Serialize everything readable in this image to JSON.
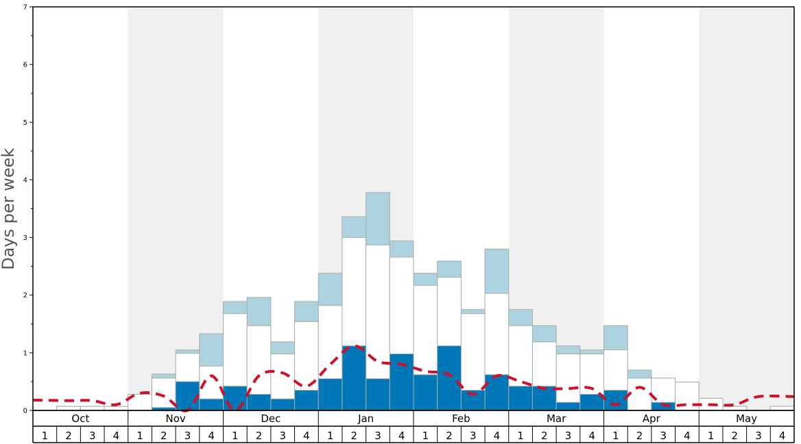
{
  "chart_data": {
    "type": "bar",
    "title": "",
    "ylabel": "Days per week",
    "xlabel": "",
    "ylim": [
      0,
      7
    ],
    "y_ticks": [
      "0",
      "1",
      "2",
      "3",
      "4",
      "5",
      "6",
      "7"
    ],
    "months": [
      "Oct",
      "Nov",
      "Dec",
      "Jan",
      "Feb",
      "Mar",
      "Apr",
      "May"
    ],
    "week_labels": [
      "1",
      "2",
      "3",
      "4"
    ],
    "colors": {
      "dark_bar": "#0077b6",
      "light_bar": "#add3df",
      "white_bar": "#ffffff",
      "bar_outline": "#aaaaaa",
      "band_shade": "#f0f0f0",
      "dashed_line": "#d0102a"
    },
    "series": [
      {
        "values": [
          0,
          0,
          0,
          0,
          0,
          0.05,
          0.5,
          0.2,
          0.42,
          0.28,
          0.2,
          0.35,
          0.55,
          1.12,
          0.55,
          0.98,
          0.62,
          1.12,
          0.35,
          0.62,
          0.42,
          0.42,
          0.14,
          0.28,
          0.35,
          0,
          0.14,
          0,
          0,
          0,
          0,
          0
        ]
      },
      {
        "values": [
          0,
          0.07,
          0.07,
          0.07,
          0.28,
          0.56,
          0.99,
          0.77,
          1.68,
          1.47,
          0.98,
          1.54,
          1.82,
          3.0,
          2.87,
          2.66,
          2.17,
          2.31,
          1.68,
          2.03,
          1.47,
          1.19,
          0.98,
          0.98,
          1.05,
          0.56,
          0.56,
          0.49,
          0.21,
          0.07,
          0,
          0.07
        ]
      },
      {
        "values": [
          0,
          0.07,
          0.07,
          0.07,
          0.28,
          0.63,
          1.05,
          1.33,
          1.89,
          1.96,
          1.19,
          1.89,
          2.38,
          3.36,
          3.78,
          2.94,
          2.38,
          2.59,
          1.75,
          2.8,
          1.75,
          1.47,
          1.12,
          1.05,
          1.47,
          0.7,
          0.56,
          0.49,
          0.21,
          0.07,
          0,
          0.07
        ]
      },
      {
        "values": [
          0.18,
          0.17,
          0.17,
          0.1,
          0.3,
          0.25,
          0.0,
          0.6,
          0.0,
          0.6,
          0.65,
          0.42,
          0.8,
          1.12,
          0.85,
          0.8,
          0.68,
          0.62,
          0.28,
          0.6,
          0.5,
          0.38,
          0.38,
          0.38,
          0.1,
          0.4,
          0.1,
          0.1,
          0.1,
          0.1,
          0.24,
          0.24
        ]
      }
    ]
  }
}
